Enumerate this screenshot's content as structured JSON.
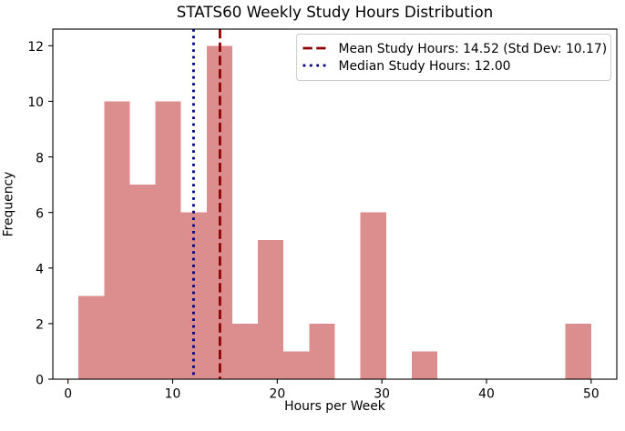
{
  "chart_data": {
    "type": "bar",
    "subtype": "histogram",
    "title": "STATS60 Weekly Study Hours Distribution",
    "xlabel": "Hours per Week",
    "ylabel": "Frequency",
    "bin_edges": [
      1.0,
      3.45,
      5.9,
      8.35,
      10.8,
      13.25,
      15.7,
      18.15,
      20.6,
      23.05,
      25.5,
      27.95,
      30.4,
      32.85,
      35.3,
      37.75,
      40.2,
      42.65,
      45.1,
      47.55,
      50.0
    ],
    "counts": [
      3,
      10,
      7,
      10,
      6,
      12,
      2,
      5,
      1,
      2,
      0,
      6,
      0,
      1,
      0,
      0,
      0,
      0,
      0,
      2
    ],
    "xlim": [
      -1.45,
      52.45
    ],
    "ylim": [
      0,
      12.6
    ],
    "xticks": [
      0,
      10,
      20,
      30,
      40,
      50
    ],
    "yticks": [
      0,
      2,
      4,
      6,
      8,
      10,
      12
    ],
    "grid": false,
    "bar_color": "#dc8d8d",
    "axis_color": "#000000",
    "legend_position": "upper right",
    "mean_line": {
      "value": 14.52,
      "std_dev": 10.17,
      "label": "Mean Study Hours: 14.52 (Std Dev: 10.17)",
      "color": "#8b0000",
      "style": "dashed"
    },
    "median_line": {
      "value": 12.0,
      "label": "Median Study Hours: 12.00",
      "color": "#000080",
      "style": "dotted"
    }
  }
}
